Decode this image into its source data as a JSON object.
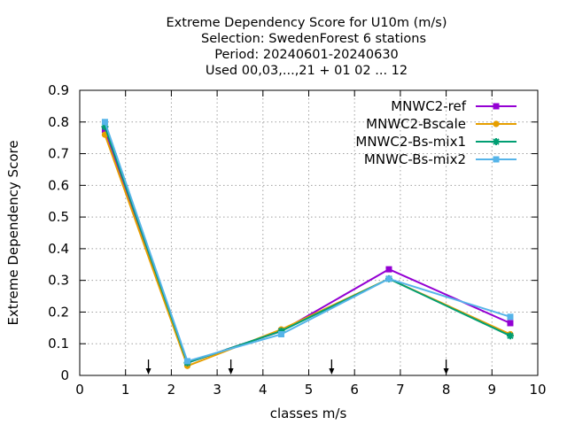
{
  "chart_data": {
    "type": "line",
    "title_lines": [
      "Extreme Dependency Score  for U10m (m/s)",
      "Selection: SwedenForest      6 stations",
      "Period: 20240601-20240630",
      "Used 00,03,...,21 + 01 02 ... 12"
    ],
    "xlabel": "classes m/s",
    "ylabel": "Extreme Dependency Score",
    "xlim": [
      0,
      10
    ],
    "ylim": [
      0,
      0.9
    ],
    "xticks": [
      0,
      1,
      2,
      3,
      4,
      5,
      6,
      7,
      8,
      9,
      10
    ],
    "yticks": [
      0,
      0.1,
      0.2,
      0.3,
      0.4,
      0.5,
      0.6,
      0.7,
      0.8,
      0.9
    ],
    "grid": true,
    "legend_position": "top-right",
    "class_boundary_arrows": [
      1.5,
      3.3,
      5.5,
      8.0
    ],
    "series": [
      {
        "name": "MNWC2-ref",
        "color": "#9400d3",
        "marker": "square",
        "x": [
          0.55,
          2.35,
          4.4,
          6.75,
          9.4
        ],
        "y": [
          0.775,
          0.04,
          0.14,
          0.335,
          0.165
        ]
      },
      {
        "name": "MNWC2-Bscale",
        "color": "#e69f00",
        "marker": "circle",
        "x": [
          0.55,
          2.35,
          4.4,
          6.75,
          9.4
        ],
        "y": [
          0.76,
          0.03,
          0.145,
          0.305,
          0.13
        ]
      },
      {
        "name": "MNWC2-Bs-mix1",
        "color": "#009e73",
        "marker": "star",
        "x": [
          0.55,
          2.35,
          4.4,
          6.75,
          9.4
        ],
        "y": [
          0.785,
          0.04,
          0.14,
          0.305,
          0.125
        ]
      },
      {
        "name": "MNWC-Bs-mix2",
        "color": "#56b4e9",
        "marker": "square",
        "x": [
          0.55,
          2.35,
          4.4,
          6.75,
          9.4
        ],
        "y": [
          0.8,
          0.045,
          0.13,
          0.305,
          0.185
        ]
      }
    ]
  }
}
